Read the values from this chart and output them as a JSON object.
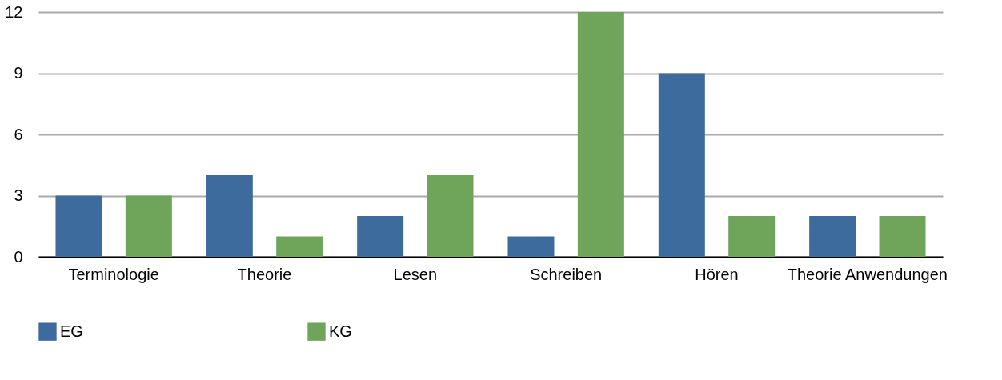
{
  "chart_data": {
    "type": "bar",
    "categories": [
      "Terminologie",
      "Theorie",
      "Lesen",
      "Schreiben",
      "Hören",
      "Theorie Anwendungen"
    ],
    "series": [
      {
        "name": "EG",
        "color": "#3d6b9e",
        "values": [
          3,
          4,
          2,
          1,
          9,
          2
        ]
      },
      {
        "name": "KG",
        "color": "#6ea55a",
        "values": [
          3,
          1,
          4,
          12,
          2,
          2
        ]
      }
    ],
    "ylim": [
      0,
      12
    ],
    "yticks": [
      0,
      3,
      6,
      9,
      12
    ],
    "grid": "y",
    "legend": "bottom"
  }
}
